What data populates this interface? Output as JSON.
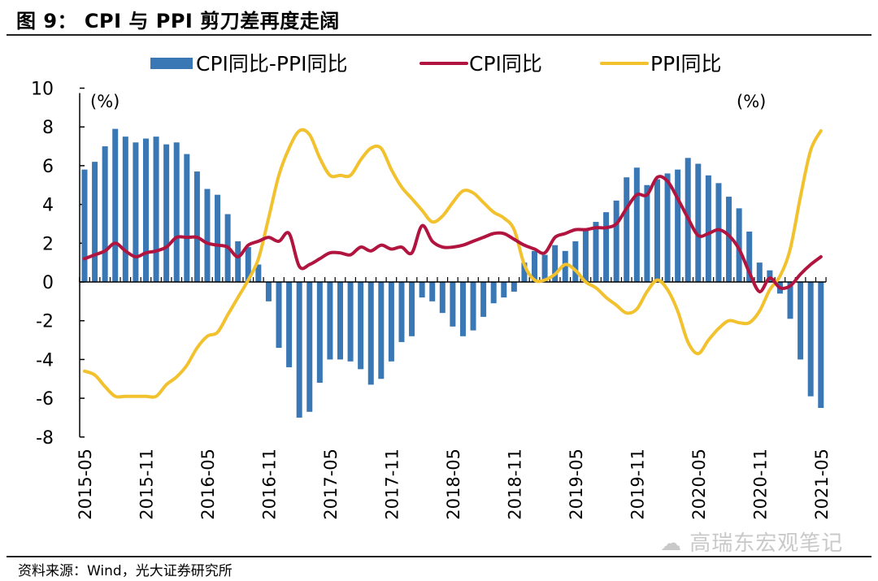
{
  "header": {
    "title": "图 9：  CPI 与 PPI 剪刀差再度走阔"
  },
  "footer": {
    "source": "资料来源：Wind，光大证券研究所",
    "watermark": "高瑞东宏观笔记"
  },
  "chart_data": {
    "type": "bar+line",
    "title": "CPI 与 PPI 剪刀差再度走阔",
    "xlabel": "",
    "ylabel": "(%)",
    "y2label": "(%)",
    "ylim": [
      -8,
      10
    ],
    "yticks": [
      10,
      8,
      6,
      4,
      2,
      0,
      -2,
      -4,
      -6,
      -8
    ],
    "xtick_labels": [
      "2015-05",
      "2015-11",
      "2016-05",
      "2016-11",
      "2017-05",
      "2017-11",
      "2018-05",
      "2018-11",
      "2019-05",
      "2019-11",
      "2020-05",
      "2020-11",
      "2021-05"
    ],
    "legend_position": "top",
    "colors": {
      "bar": "#3a77b5",
      "cpi": "#b0143f",
      "ppi": "#f2c12e"
    },
    "x": [
      "2015-05",
      "2015-06",
      "2015-07",
      "2015-08",
      "2015-09",
      "2015-10",
      "2015-11",
      "2015-12",
      "2016-01",
      "2016-02",
      "2016-03",
      "2016-04",
      "2016-05",
      "2016-06",
      "2016-07",
      "2016-08",
      "2016-09",
      "2016-10",
      "2016-11",
      "2016-12",
      "2017-01",
      "2017-02",
      "2017-03",
      "2017-04",
      "2017-05",
      "2017-06",
      "2017-07",
      "2017-08",
      "2017-09",
      "2017-10",
      "2017-11",
      "2017-12",
      "2018-01",
      "2018-02",
      "2018-03",
      "2018-04",
      "2018-05",
      "2018-06",
      "2018-07",
      "2018-08",
      "2018-09",
      "2018-10",
      "2018-11",
      "2018-12",
      "2019-01",
      "2019-02",
      "2019-03",
      "2019-04",
      "2019-05",
      "2019-06",
      "2019-07",
      "2019-08",
      "2019-09",
      "2019-10",
      "2019-11",
      "2019-12",
      "2020-01",
      "2020-02",
      "2020-03",
      "2020-04",
      "2020-05",
      "2020-06",
      "2020-07",
      "2020-08",
      "2020-09",
      "2020-10",
      "2020-11",
      "2020-12",
      "2021-01",
      "2021-02",
      "2021-03",
      "2021-04",
      "2021-05"
    ],
    "series": [
      {
        "name": "CPI同比-PPI同比",
        "kind": "bar",
        "values": [
          5.8,
          6.2,
          7.0,
          7.9,
          7.5,
          7.2,
          7.4,
          7.5,
          7.1,
          7.2,
          6.6,
          5.7,
          4.8,
          4.5,
          3.5,
          2.1,
          1.8,
          0.9,
          -1.0,
          -3.4,
          -4.4,
          -7.0,
          -6.7,
          -5.2,
          -4.0,
          -4.0,
          -4.1,
          -4.5,
          -5.3,
          -5.0,
          -4.1,
          -3.1,
          -2.8,
          -0.8,
          -1.0,
          -1.6,
          -2.3,
          -2.8,
          -2.5,
          -1.8,
          -1.1,
          -0.8,
          -0.5,
          1.0,
          1.6,
          1.4,
          1.9,
          1.6,
          2.1,
          2.7,
          3.1,
          3.6,
          4.2,
          5.4,
          5.9,
          5.0,
          5.3,
          5.6,
          5.8,
          6.4,
          6.1,
          5.5,
          5.1,
          4.4,
          3.8,
          2.6,
          1.0,
          0.6,
          -0.6,
          -1.9,
          -4.0,
          -5.9,
          -6.5
        ]
      },
      {
        "name": "CPI同比",
        "kind": "line",
        "values": [
          1.2,
          1.4,
          1.6,
          2.0,
          1.6,
          1.3,
          1.5,
          1.6,
          1.8,
          2.3,
          2.3,
          2.3,
          2.0,
          1.9,
          1.8,
          1.3,
          1.9,
          2.1,
          2.3,
          2.1,
          2.5,
          0.8,
          0.9,
          1.2,
          1.5,
          1.5,
          1.4,
          1.8,
          1.6,
          1.9,
          1.7,
          1.8,
          1.5,
          2.9,
          2.1,
          1.8,
          1.8,
          1.9,
          2.1,
          2.3,
          2.5,
          2.5,
          2.2,
          1.9,
          1.7,
          1.5,
          2.3,
          2.5,
          2.7,
          2.7,
          2.8,
          2.8,
          3.0,
          3.8,
          4.5,
          4.5,
          5.4,
          5.2,
          4.3,
          3.3,
          2.4,
          2.5,
          2.7,
          2.4,
          1.7,
          0.5,
          -0.5,
          0.2,
          -0.3,
          -0.2,
          0.4,
          0.9,
          1.3
        ]
      },
      {
        "name": "PPI同比",
        "kind": "line",
        "values": [
          -4.6,
          -4.8,
          -5.4,
          -5.9,
          -5.9,
          -5.9,
          -5.9,
          -5.9,
          -5.3,
          -4.9,
          -4.3,
          -3.4,
          -2.8,
          -2.6,
          -1.7,
          -0.8,
          0.1,
          1.2,
          3.3,
          5.5,
          6.9,
          7.8,
          7.6,
          6.4,
          5.5,
          5.5,
          5.5,
          6.3,
          6.9,
          6.9,
          5.8,
          4.9,
          4.3,
          3.7,
          3.1,
          3.4,
          4.1,
          4.7,
          4.6,
          4.1,
          3.6,
          3.3,
          2.7,
          0.9,
          0.1,
          0.1,
          0.4,
          0.9,
          0.6,
          0.0,
          -0.3,
          -0.8,
          -1.2,
          -1.6,
          -1.4,
          -0.5,
          0.1,
          -0.4,
          -1.5,
          -3.1,
          -3.7,
          -3.0,
          -2.4,
          -2.0,
          -2.1,
          -2.1,
          -1.5,
          -0.4,
          0.3,
          1.7,
          4.4,
          6.8,
          7.8
        ]
      }
    ]
  }
}
